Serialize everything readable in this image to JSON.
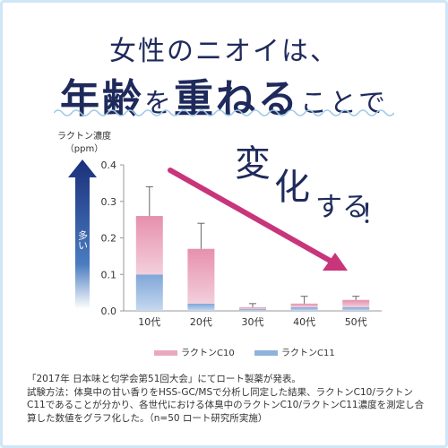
{
  "headline": {
    "line1": "女性のニオイは、",
    "line2_big1": "年齢",
    "line2_small1": "を",
    "line2_big2": "重ねる",
    "line2_small2": "ことで"
  },
  "callout": {
    "c1": "変",
    "c2": "化",
    "c3": "する",
    "c4": "！"
  },
  "arrow_label": "多い",
  "chart_data": {
    "type": "bar",
    "categories": [
      "10代",
      "20代",
      "30代",
      "40代",
      "50代"
    ],
    "series": [
      {
        "name": "ラクトンC10",
        "values": [
          0.16,
          0.15,
          0.005,
          0.01,
          0.02
        ],
        "error": [
          0.08,
          0.07,
          0.01,
          0.02,
          0.01
        ],
        "color": "#e9a9bd"
      },
      {
        "name": "ラクトンC11",
        "values": [
          0.1,
          0.02,
          0.005,
          0.01,
          0.01
        ],
        "color": "#8fb2dc"
      }
    ],
    "stacked": true,
    "ylabel_line1": "ラクトン濃度",
    "ylabel_line2": "（ppm）",
    "ylim": [
      0,
      0.4
    ],
    "yticks": [
      "0.0",
      "0.1",
      "0.2",
      "0.3",
      "0.4"
    ],
    "ytick_values": [
      0,
      0.1,
      0.2,
      0.3,
      0.4
    ]
  },
  "note": {
    "line1": "「2017年 日本味と匂学会第51回大会」にてロート製薬が発表。",
    "line2": "試験方法：体臭中の甘い香りをHSS-GC/MSで分析し同定した結果、ラクトンC10/ラクトン",
    "line3": "C11であることが分かり、各世代における体臭中のラクトンC10/ラクトンC11濃度を測定し合",
    "line4": "算した数値をグラフ化した。（n=50 ロート研究所実施）"
  },
  "colors": {
    "navy": "#1f2a5c",
    "arrow": "#c0357a",
    "c10": "#e9a9bd",
    "c11": "#8fb2dc"
  }
}
